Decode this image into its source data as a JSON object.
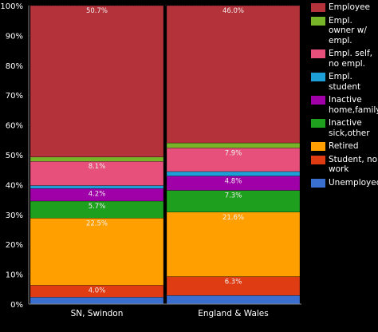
{
  "chart_data": {
    "type": "bar",
    "stacked": true,
    "categories": [
      "SN, Swindon",
      "England & Wales"
    ],
    "ylim": [
      0,
      100
    ],
    "yticks": [
      "0%",
      "10%",
      "20%",
      "30%",
      "40%",
      "50%",
      "60%",
      "70%",
      "80%",
      "90%",
      "100%"
    ],
    "grid": true,
    "legend_position": "right",
    "series": [
      {
        "name": "Unemployed",
        "color": "#3a6fcf",
        "values": [
          2.3,
          2.9
        ],
        "labels": [
          "",
          ""
        ]
      },
      {
        "name": "Student, no work",
        "color": "#e03c14",
        "values": [
          4.0,
          6.3
        ],
        "labels": [
          "4.0%",
          "6.3%"
        ]
      },
      {
        "name": "Retired",
        "color": "#ffa000",
        "values": [
          22.5,
          21.6
        ],
        "labels": [
          "22.5%",
          "21.6%"
        ]
      },
      {
        "name": "Inactive sick,other",
        "color": "#1ea01e",
        "values": [
          5.7,
          7.3
        ],
        "labels": [
          "5.7%",
          "7.3%"
        ]
      },
      {
        "name": "Inactive home,family",
        "color": "#a000a8",
        "values": [
          4.2,
          4.8
        ],
        "labels": [
          "4.2%",
          "4.8%"
        ]
      },
      {
        "name": "Empl. student",
        "color": "#1e9ed6",
        "values": [
          1.0,
          1.5
        ],
        "labels": [
          "",
          ""
        ]
      },
      {
        "name": "Empl. self, no empl.",
        "color": "#e6507a",
        "values": [
          8.1,
          7.9
        ],
        "labels": [
          "8.1%",
          "7.9%"
        ]
      },
      {
        "name": "Empl. owner w/ empl.",
        "color": "#78b428",
        "values": [
          1.5,
          1.7
        ],
        "labels": [
          "",
          ""
        ]
      },
      {
        "name": "Employee",
        "color": "#b4323a",
        "values": [
          50.7,
          46.0
        ],
        "labels": [
          "50.7%",
          "46.0%"
        ]
      }
    ]
  },
  "legend": [
    {
      "label": "Employee",
      "color": "#b4323a"
    },
    {
      "label": "Empl. owner w/ empl.",
      "color": "#78b428"
    },
    {
      "label": "Empl. self, no empl.",
      "color": "#e6507a"
    },
    {
      "label": "Empl. student",
      "color": "#1e9ed6"
    },
    {
      "label": "Inactive home,family",
      "color": "#a000a8"
    },
    {
      "label": "Inactive sick,other",
      "color": "#1ea01e"
    },
    {
      "label": "Retired",
      "color": "#ffa000"
    },
    {
      "label": "Student, no work",
      "color": "#e03c14"
    },
    {
      "label": "Unemployed",
      "color": "#3a6fcf"
    }
  ]
}
